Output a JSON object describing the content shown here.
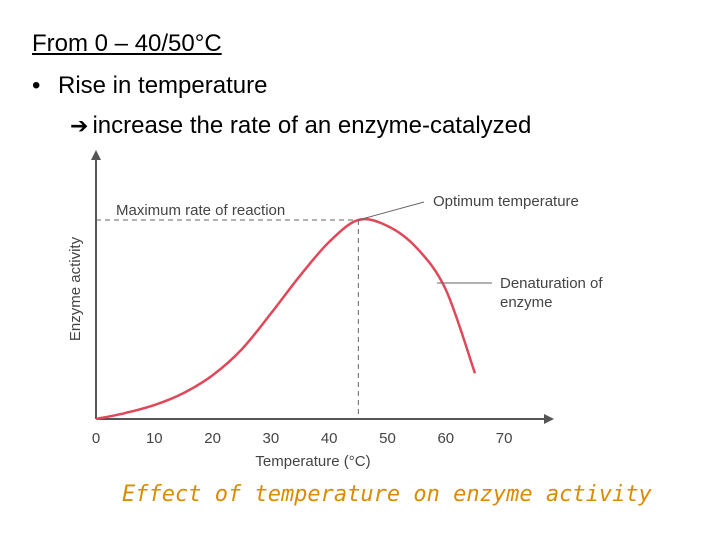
{
  "slide": {
    "heading": "From 0 – 40/50°C",
    "bullet_symbol": "•",
    "bullet_text": "Rise in temperature",
    "sub_arrow": "➔",
    "sub_text": "increase the rate of an enzyme-catalyzed",
    "caption": "Effect of temperature on enzyme activity",
    "caption_color": "#d98c00"
  },
  "chart_data": {
    "type": "line",
    "xlabel": "Temperature (°C)",
    "ylabel": "Enzyme activity",
    "xlim": [
      0,
      78
    ],
    "ylim": [
      0,
      100
    ],
    "x_ticks": [
      0,
      10,
      20,
      30,
      40,
      50,
      60,
      70
    ],
    "y_ticks_shown": false,
    "grid": false,
    "series": [
      {
        "color": "#e0485a",
        "x": [
          0,
          5,
          10,
          15,
          20,
          25,
          30,
          35,
          40,
          45,
          50,
          55,
          60,
          65
        ],
        "y": [
          0,
          3,
          7,
          13,
          22,
          35,
          53,
          72,
          89,
          100,
          97,
          86,
          65,
          23
        ]
      }
    ],
    "peak": {
      "x": 45,
      "y": 100
    },
    "annotations": [
      {
        "text": "Maximum rate of reaction"
      },
      {
        "text": "Optimum temperature"
      },
      {
        "text": "Denaturation of enzyme",
        "lines": [
          "Denaturation of",
          "enzyme"
        ]
      }
    ]
  }
}
